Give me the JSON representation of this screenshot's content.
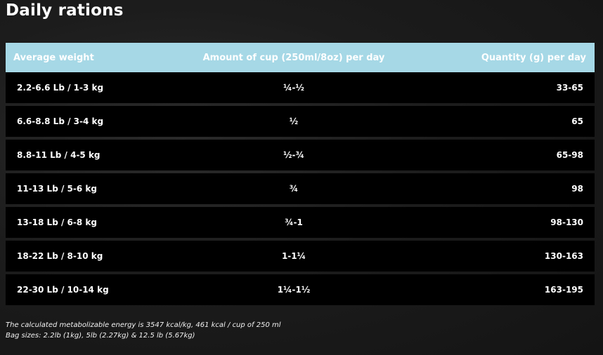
{
  "title": "Daily rations",
  "table": {
    "headers": [
      "Average weight",
      "Amount of cup (250ml/8oz) per day",
      "Quantity (g) per day"
    ],
    "rows": [
      [
        "2.2-6.6 Lb / 1-3 kg",
        "¼-½",
        "33-65"
      ],
      [
        "6.6-8.8 Lb / 3-4 kg",
        "½",
        "65"
      ],
      [
        "8.8-11 Lb / 4-5 kg",
        "½-¾",
        "65-98"
      ],
      [
        "11-13 Lb / 5-6 kg",
        "¾",
        "98"
      ],
      [
        "13-18 Lb / 6-8 kg",
        "¾-1",
        "98-130"
      ],
      [
        "18-22 Lb / 8-10 kg",
        "1-1¼",
        "130-163"
      ],
      [
        "22-30 Lb / 10-14 kg",
        "1¼-1½",
        "163-195"
      ]
    ]
  },
  "notes": [
    "The calculated metabolizable energy is 3547 kcal/kg, 461 kcal / cup of 250 ml",
    "Bag sizes: 2.2lb (1kg), 5lb (2.27kg) & 12.5 lb (5.67kg)"
  ],
  "colors": {
    "header_bg": "#a6d8e6",
    "row_bg": "#000000",
    "page_bg": "#1c1c1c"
  }
}
